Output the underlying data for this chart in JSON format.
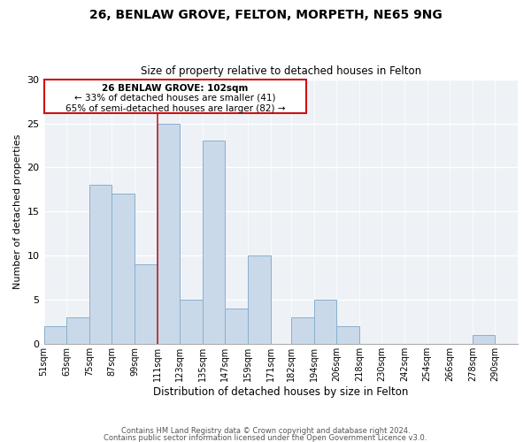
{
  "title1": "26, BENLAW GROVE, FELTON, MORPETH, NE65 9NG",
  "title2": "Size of property relative to detached houses in Felton",
  "xlabel": "Distribution of detached houses by size in Felton",
  "ylabel": "Number of detached properties",
  "footer1": "Contains HM Land Registry data © Crown copyright and database right 2024.",
  "footer2": "Contains public sector information licensed under the Open Government Licence v3.0.",
  "annotation_line1": "26 BENLAW GROVE: 102sqm",
  "annotation_line2": "← 33% of detached houses are smaller (41)",
  "annotation_line3": "65% of semi-detached houses are larger (82) →",
  "bar_color": "#c9d9ea",
  "bar_edge_color": "#8ab0cc",
  "ref_line_color": "#bb2222",
  "categories": [
    "51sqm",
    "63sqm",
    "75sqm",
    "87sqm",
    "99sqm",
    "111sqm",
    "123sqm",
    "135sqm",
    "147sqm",
    "159sqm",
    "171sqm",
    "182sqm",
    "194sqm",
    "206sqm",
    "218sqm",
    "230sqm",
    "242sqm",
    "254sqm",
    "266sqm",
    "278sqm",
    "290sqm"
  ],
  "bin_edges": [
    51,
    63,
    75,
    87,
    99,
    111,
    123,
    135,
    147,
    159,
    171,
    182,
    194,
    206,
    218,
    230,
    242,
    254,
    266,
    278,
    290,
    302
  ],
  "values": [
    2,
    3,
    18,
    17,
    9,
    25,
    5,
    23,
    4,
    10,
    0,
    3,
    5,
    2,
    0,
    0,
    0,
    0,
    0,
    1,
    0
  ],
  "ylim": [
    0,
    30
  ],
  "yticks": [
    0,
    5,
    10,
    15,
    20,
    25,
    30
  ],
  "ref_line_x": 111,
  "background_color": "#eef2f6",
  "grid_color": "#ffffff"
}
